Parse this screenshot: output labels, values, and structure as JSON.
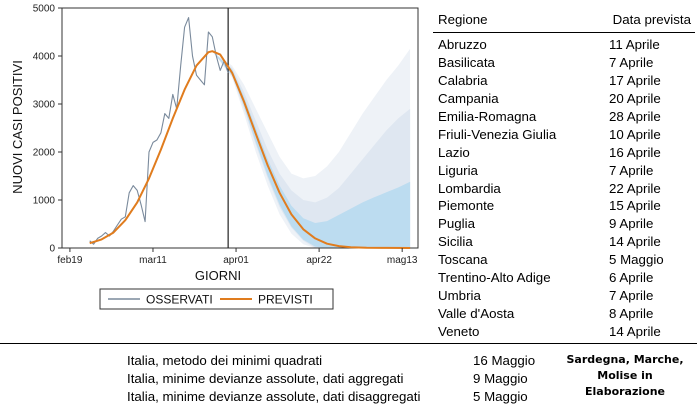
{
  "chart_data": {
    "type": "line",
    "xlabel": "GIORNI",
    "ylabel": "NUOVI CASI POSITIVI",
    "ylim": [
      0,
      5000
    ],
    "yticks": [
      0,
      1000,
      2000,
      3000,
      4000,
      5000
    ],
    "xticks": [
      {
        "day": 0,
        "label": "feb19"
      },
      {
        "day": 21,
        "label": "mar11"
      },
      {
        "day": 42,
        "label": "apr01"
      },
      {
        "day": 63,
        "label": "apr22"
      },
      {
        "day": 84,
        "label": "mag13"
      }
    ],
    "xlim": [
      -2,
      88
    ],
    "vline_day": 40,
    "legend": {
      "placement": "bottom",
      "items": [
        "OSSERVATI",
        "PREVISTI"
      ]
    },
    "series": [
      {
        "name": "OSSERVATI",
        "color": "#7a8a9c",
        "x": [
          5,
          6,
          7,
          8,
          9,
          10,
          11,
          12,
          13,
          14,
          15,
          16,
          17,
          18,
          19,
          20,
          21,
          22,
          23,
          24,
          25,
          26,
          27,
          28,
          29,
          30,
          31,
          32,
          33,
          34,
          35,
          36,
          37,
          38,
          39,
          40
        ],
        "y": [
          150,
          80,
          200,
          250,
          320,
          250,
          350,
          480,
          600,
          650,
          1150,
          1300,
          1200,
          900,
          550,
          2000,
          2200,
          2250,
          2400,
          2800,
          2700,
          3200,
          2900,
          3800,
          4600,
          4800,
          4000,
          3600,
          3500,
          3400,
          4500,
          4400,
          4000,
          3700,
          3900,
          3650
        ]
      },
      {
        "name": "PREVISTI",
        "color": "#e07c1e",
        "x": [
          5,
          8,
          11,
          14,
          17,
          20,
          23,
          26,
          29,
          32,
          35,
          36,
          38,
          41,
          44,
          47,
          50,
          53,
          56,
          59,
          62,
          65,
          68,
          71,
          75,
          80,
          86
        ],
        "y": [
          100,
          180,
          320,
          580,
          950,
          1450,
          2050,
          2700,
          3300,
          3800,
          4080,
          4100,
          4030,
          3650,
          3050,
          2380,
          1720,
          1150,
          700,
          390,
          200,
          90,
          40,
          15,
          5,
          2,
          0
        ]
      }
    ],
    "bands": [
      {
        "name": "outer",
        "color": "#eef2f7",
        "x": [
          36,
          41,
          44,
          47,
          50,
          53,
          56,
          59,
          62,
          65,
          68,
          71,
          74,
          77,
          80,
          83,
          86
        ],
        "upper": [
          4100,
          3800,
          3400,
          2900,
          2400,
          1900,
          1550,
          1450,
          1500,
          1700,
          2000,
          2400,
          2800,
          3150,
          3500,
          3800,
          4150
        ],
        "lower": [
          4100,
          3550,
          2800,
          2000,
          1300,
          700,
          300,
          80,
          0,
          0,
          0,
          0,
          0,
          0,
          0,
          0,
          0
        ]
      },
      {
        "name": "middle",
        "color": "#dfe7f1",
        "x": [
          36,
          41,
          44,
          47,
          50,
          53,
          56,
          59,
          62,
          65,
          68,
          71,
          74,
          77,
          80,
          83,
          86
        ],
        "upper": [
          4100,
          3750,
          3250,
          2650,
          2050,
          1550,
          1200,
          1000,
          950,
          1050,
          1250,
          1550,
          1850,
          2150,
          2450,
          2700,
          2900
        ],
        "lower": [
          4100,
          3580,
          2900,
          2150,
          1450,
          850,
          420,
          150,
          0,
          0,
          0,
          0,
          0,
          0,
          0,
          0,
          0
        ]
      },
      {
        "name": "inner",
        "color": "#bcdcf0",
        "x": [
          36,
          41,
          44,
          47,
          50,
          53,
          56,
          59,
          62,
          65,
          68,
          71,
          74,
          77,
          80,
          83,
          86
        ],
        "upper": [
          4100,
          3720,
          3150,
          2500,
          1850,
          1300,
          880,
          620,
          520,
          560,
          690,
          820,
          950,
          1060,
          1160,
          1260,
          1380
        ],
        "lower": [
          4100,
          3600,
          2950,
          2200,
          1500,
          900,
          450,
          170,
          30,
          0,
          0,
          0,
          0,
          0,
          0,
          0,
          0
        ]
      }
    ]
  },
  "table": {
    "header_region": "Regione",
    "header_date": "Data prevista",
    "rows": [
      {
        "region": "Abruzzo",
        "date": "11 Aprile"
      },
      {
        "region": "Basilicata",
        "date": "7 Aprile"
      },
      {
        "region": "Calabria",
        "date": "17 Aprile"
      },
      {
        "region": "Campania",
        "date": "20 Aprile"
      },
      {
        "region": "Emilia-Romagna",
        "date": "28 Aprile"
      },
      {
        "region": "Friuli-Venezia Giulia",
        "date": "10 Aprile"
      },
      {
        "region": "Lazio",
        "date": "16 Aprile"
      },
      {
        "region": "Liguria",
        "date": "7 Aprile"
      },
      {
        "region": "Lombardia",
        "date": "22 Aprile"
      },
      {
        "region": "Piemonte",
        "date": "15 Aprile"
      },
      {
        "region": "Puglia",
        "date": "9 Aprile"
      },
      {
        "region": "Sicilia",
        "date": "14 Aprile"
      },
      {
        "region": "Toscana",
        "date": "5 Maggio"
      },
      {
        "region": "Trentino-Alto Adige",
        "date": "6 Aprile"
      },
      {
        "region": "Umbria",
        "date": "7 Aprile"
      },
      {
        "region": "Valle d'Aosta",
        "date": "8 Aprile"
      },
      {
        "region": "Veneto",
        "date": "14 Aprile"
      }
    ]
  },
  "methods": [
    {
      "label": "Italia, metodo dei minimi quadrati",
      "date": "16 Maggio"
    },
    {
      "label": "Italia, minime devianze assolute, dati aggregati",
      "date": "9 Maggio"
    },
    {
      "label": "Italia, minime devianze assolute, dati disaggregati",
      "date": "5 Maggio"
    }
  ],
  "note": {
    "line1": "Sardegna, Marche,",
    "line2": "Molise in",
    "line3": "Elaborazione"
  }
}
